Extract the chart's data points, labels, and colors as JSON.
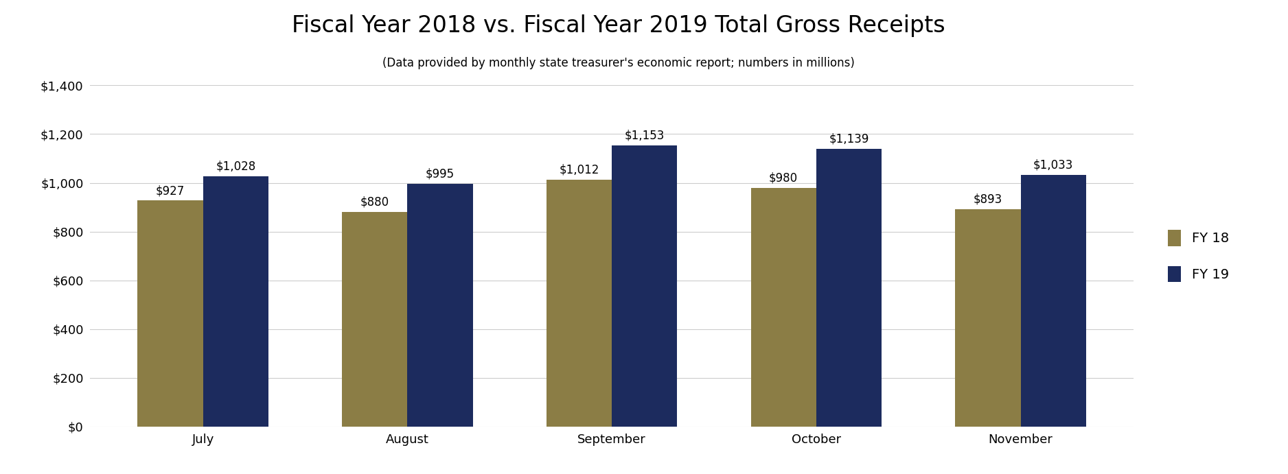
{
  "title": "Fiscal Year 2018 vs. Fiscal Year 2019 Total Gross Receipts",
  "subtitle": "(Data provided by monthly state treasurer's economic report; numbers in millions)",
  "categories": [
    "July",
    "August",
    "September",
    "October",
    "November"
  ],
  "fy18_values": [
    927,
    880,
    1012,
    980,
    893
  ],
  "fy19_values": [
    1028,
    995,
    1153,
    1139,
    1033
  ],
  "fy18_label": "FY 18",
  "fy19_label": "FY 19",
  "fy18_color": "#8B7D45",
  "fy19_color": "#1C2B5E",
  "bar_width": 0.32,
  "ylim": [
    0,
    1400
  ],
  "yticks": [
    0,
    200,
    400,
    600,
    800,
    1000,
    1200,
    1400
  ],
  "title_fontsize": 24,
  "subtitle_fontsize": 12,
  "tick_fontsize": 13,
  "annot_fontsize": 12,
  "legend_fontsize": 14,
  "background_color": "#ffffff",
  "grid_color": "#cccccc"
}
